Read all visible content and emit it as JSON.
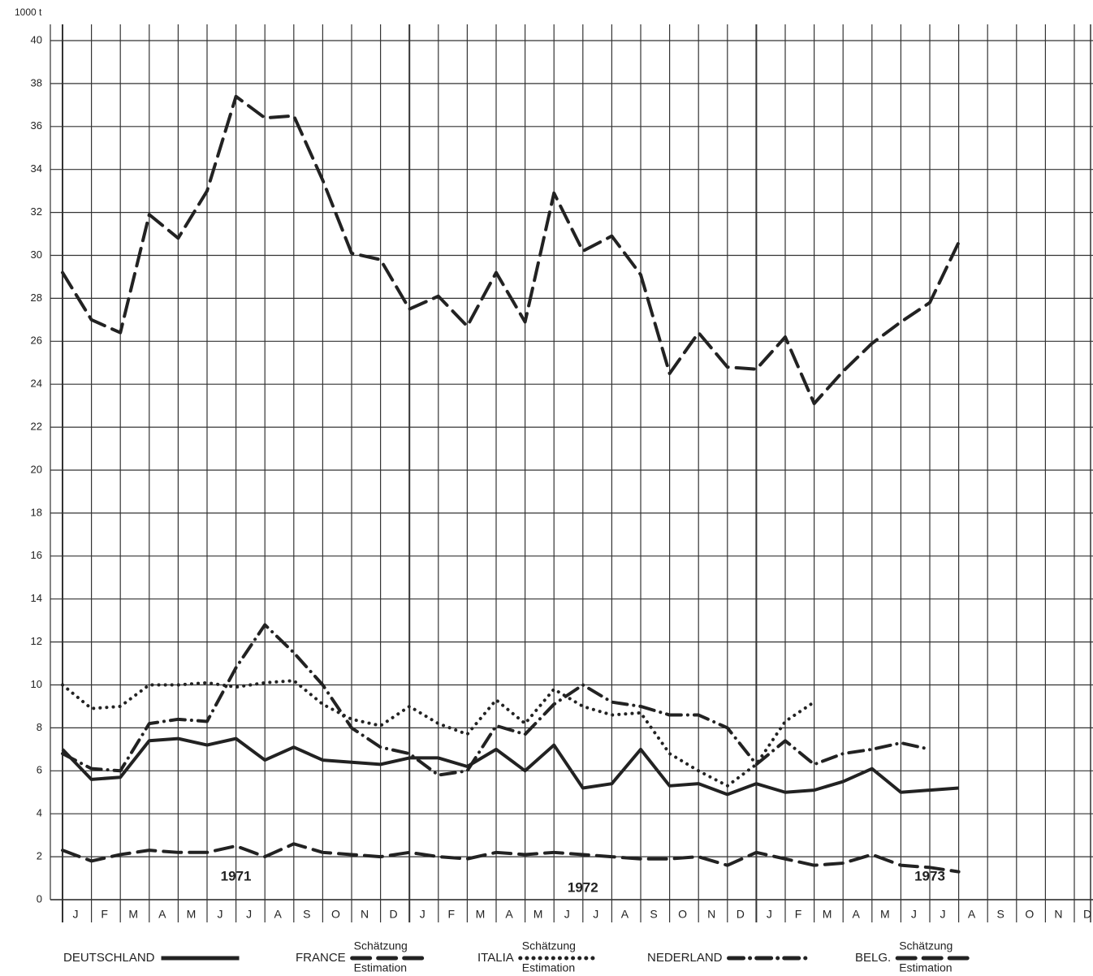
{
  "chart_data": {
    "type": "line",
    "y_axis_label": "1000 t",
    "categories": [
      "J",
      "F",
      "M",
      "A",
      "M",
      "J",
      "J",
      "A",
      "S",
      "O",
      "N",
      "D",
      "J",
      "F",
      "M",
      "A",
      "M",
      "J",
      "J",
      "A",
      "S",
      "O",
      "N",
      "D",
      "J",
      "F",
      "M",
      "A",
      "M",
      "J",
      "J",
      "A",
      "S",
      "O",
      "N",
      "D"
    ],
    "year_labels": [
      "1971",
      "1972",
      "1973"
    ],
    "ylim": [
      0,
      40
    ],
    "yticks": [
      0,
      2,
      4,
      6,
      8,
      10,
      12,
      14,
      16,
      18,
      20,
      22,
      24,
      26,
      28,
      30,
      32,
      34,
      36,
      38,
      40
    ],
    "grid": true,
    "series": [
      {
        "name": "DEUTSCHLAND",
        "color": "#222222",
        "dash": "solid",
        "values": [
          7.0,
          5.6,
          5.7,
          7.4,
          7.5,
          7.2,
          7.5,
          6.5,
          7.1,
          6.5,
          6.4,
          6.3,
          6.6,
          6.6,
          6.2,
          7.0,
          6.0,
          7.2,
          5.2,
          5.4,
          7.0,
          5.3,
          5.4,
          4.9,
          5.4,
          5.0,
          5.1,
          5.5,
          6.1,
          5.0,
          5.1,
          5.2,
          null,
          null,
          null,
          null
        ]
      },
      {
        "name": "FRANCE",
        "color": "#222222",
        "dash": "dashed",
        "note": [
          "Schätzung",
          "Estimation"
        ],
        "values": [
          29.2,
          27.0,
          26.4,
          31.9,
          30.8,
          33.0,
          37.4,
          36.4,
          36.5,
          33.5,
          30.1,
          29.8,
          27.5,
          28.1,
          26.7,
          29.2,
          26.9,
          32.9,
          30.2,
          30.9,
          29.1,
          24.5,
          26.4,
          24.8,
          24.7,
          26.2,
          23.1,
          24.6,
          25.9,
          26.9,
          27.8,
          30.6,
          null,
          null,
          null,
          null
        ]
      },
      {
        "name": "ITALIA",
        "color": "#222222",
        "dash": "dotted",
        "note": [
          "Schätzung",
          "Estimation"
        ],
        "values": [
          10.0,
          8.9,
          9.0,
          10.0,
          10.0,
          10.1,
          9.9,
          10.1,
          10.2,
          9.1,
          8.4,
          8.1,
          9.0,
          8.2,
          7.7,
          9.3,
          8.2,
          9.8,
          9.0,
          8.6,
          8.7,
          6.8,
          6.0,
          5.3,
          6.3,
          8.3,
          9.2,
          null,
          null,
          null,
          null,
          null,
          null,
          null,
          null,
          null
        ]
      },
      {
        "name": "NEDERLAND",
        "color": "#222222",
        "dash": "dashdot",
        "values": [
          6.8,
          6.1,
          6.0,
          8.2,
          8.4,
          8.3,
          10.8,
          12.8,
          11.5,
          10.0,
          8.0,
          7.1,
          6.8,
          5.8,
          6.0,
          8.1,
          7.7,
          9.1,
          10.0,
          9.2,
          9.0,
          8.6,
          8.6,
          8.0,
          6.3,
          7.4,
          6.3,
          6.8,
          7.0,
          7.3,
          7.0,
          null,
          null,
          null,
          null,
          null
        ]
      },
      {
        "name": "BELG.",
        "color": "#222222",
        "dash": "dashed",
        "note": [
          "Schätzung",
          "Estimation"
        ],
        "values": [
          2.3,
          1.8,
          2.1,
          2.3,
          2.2,
          2.2,
          2.5,
          2.0,
          2.6,
          2.2,
          2.1,
          2.0,
          2.2,
          2.0,
          1.9,
          2.2,
          2.1,
          2.2,
          2.1,
          2.0,
          1.9,
          1.9,
          2.0,
          1.6,
          2.2,
          1.9,
          1.6,
          1.7,
          2.1,
          1.6,
          1.5,
          1.3,
          null,
          null,
          null,
          null
        ]
      }
    ]
  }
}
